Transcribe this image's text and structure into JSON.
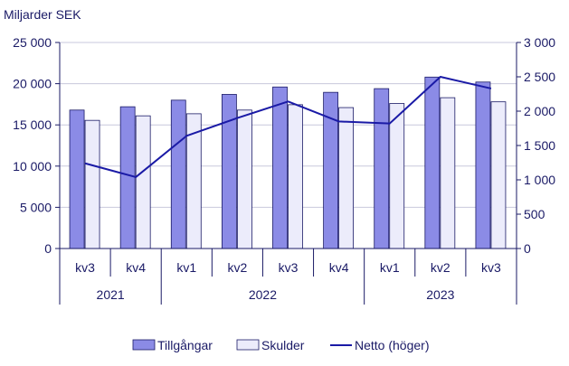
{
  "chart_data": {
    "type": "bar",
    "title": "",
    "ylabel": "Miljarder SEK",
    "categories": [
      "kv3",
      "kv4",
      "kv1",
      "kv2",
      "kv3",
      "kv4",
      "kv1",
      "kv2",
      "kv3"
    ],
    "years": [
      {
        "label": "2021",
        "span": 2
      },
      {
        "label": "2022",
        "span": 4
      },
      {
        "label": "2023",
        "span": 3
      }
    ],
    "ylim": [
      0,
      25000
    ],
    "y_ticks": [
      "0",
      "5 000",
      "10 000",
      "15 000",
      "20 000",
      "25 000"
    ],
    "y2lim": [
      0,
      3000
    ],
    "y2_ticks": [
      "0",
      "500",
      "1 000",
      "1 500",
      "2 000",
      "2 500",
      "3 000"
    ],
    "grid": true,
    "legend_position": "bottom",
    "series": [
      {
        "name": "Tillgångar",
        "type": "bar",
        "axis": "left",
        "color": "#8b8be6",
        "values": [
          16800,
          17200,
          18000,
          18700,
          19600,
          18950,
          19400,
          20800,
          20200
        ]
      },
      {
        "name": "Skulder",
        "type": "bar",
        "axis": "left",
        "color": "#ececfb",
        "values": [
          15550,
          16100,
          16350,
          16800,
          17450,
          17100,
          17600,
          18300,
          17800
        ]
      },
      {
        "name": "Netto (höger)",
        "type": "line",
        "axis": "right",
        "color": "#1a1aa6",
        "values": [
          1240,
          1040,
          1640,
          1900,
          2140,
          1850,
          1820,
          2500,
          2330
        ]
      }
    ]
  }
}
